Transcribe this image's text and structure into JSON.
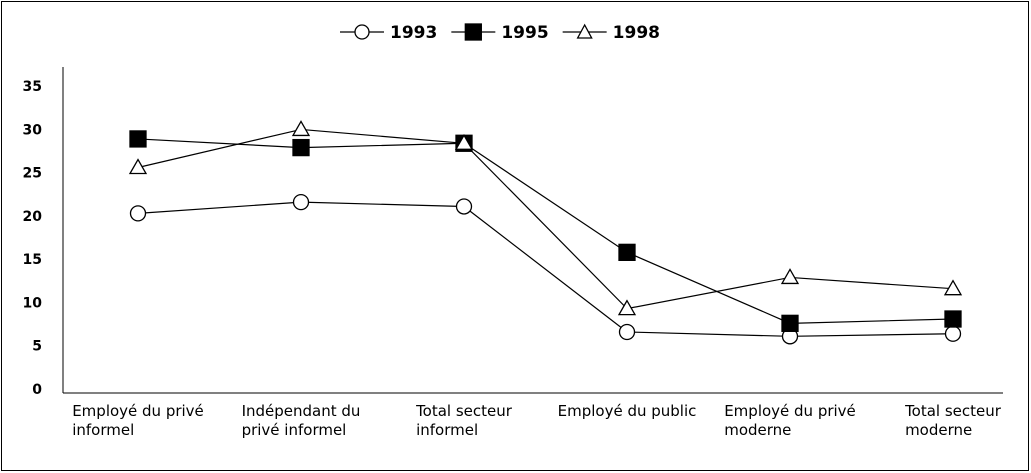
{
  "chart_data": {
    "type": "line",
    "categories": [
      "Employé du privé\ninformel",
      "Indépendant du\nprivé informel",
      "Total secteur\ninformel",
      "Employé du public",
      "Employé du privé\nmoderne",
      "Total secteur\nmoderne"
    ],
    "series": [
      {
        "name": "1993",
        "color": "#000000",
        "marker": "circle",
        "values": [
          20.4,
          21.7,
          21.2,
          6.7,
          6.2,
          6.5
        ]
      },
      {
        "name": "1995",
        "color": "#000000",
        "marker": "square",
        "values": [
          29.0,
          28.0,
          28.5,
          15.9,
          7.7,
          8.2
        ]
      },
      {
        "name": "1998",
        "color": "#000000",
        "marker": "triangle",
        "values": [
          25.7,
          30.1,
          28.5,
          9.4,
          13.0,
          11.7
        ]
      }
    ],
    "ylim": [
      0,
      35
    ],
    "yticks": [
      0,
      5,
      10,
      15,
      20,
      25,
      30,
      35
    ],
    "grid": false,
    "legend": "top"
  }
}
